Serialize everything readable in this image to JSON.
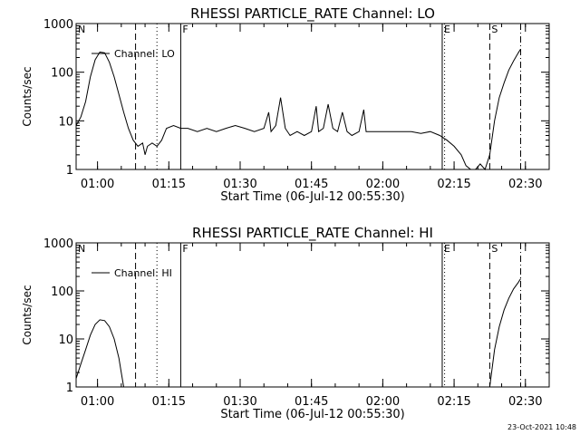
{
  "footer": {
    "timestamp": "23-Oct-2021 10:48"
  },
  "chart_data": [
    {
      "type": "line",
      "title": "RHESSI PARTICLE_RATE Channel: LO",
      "xlabel": "Start Time (06-Jul-12 00:55:30)",
      "ylabel": "Counts/sec",
      "yscale": "log",
      "ylim": [
        1,
        1000
      ],
      "xlim": [
        "00:55:30",
        "02:35:00"
      ],
      "xticks": [
        "01:00",
        "01:15",
        "01:30",
        "01:45",
        "02:00",
        "02:15",
        "02:30"
      ],
      "yticks": [
        "1",
        "10",
        "100",
        "1000"
      ],
      "legend": {
        "position": "top-left",
        "entries": [
          "Channel: LO"
        ]
      },
      "markers": [
        {
          "label": "N",
          "time": "00:55:30",
          "style": "solid"
        },
        {
          "label": "",
          "time": "01:08:00",
          "style": "dashed"
        },
        {
          "label": "",
          "time": "01:12:30",
          "style": "dotted"
        },
        {
          "label": "F",
          "time": "01:17:30",
          "style": "solid"
        },
        {
          "label": "E",
          "time": "02:12:30",
          "style": "solid"
        },
        {
          "label": "",
          "time": "02:13:00",
          "style": "dotted"
        },
        {
          "label": "S",
          "time": "02:22:30",
          "style": "dashed"
        },
        {
          "label": "",
          "time": "02:29:00",
          "style": "dashdot"
        }
      ],
      "series": [
        {
          "name": "Channel: LO",
          "points": [
            [
              "00:55:30",
              8
            ],
            [
              "00:56:30",
              12
            ],
            [
              "00:57:30",
              25
            ],
            [
              "00:58:30",
              80
            ],
            [
              "00:59:30",
              180
            ],
            [
              "01:00:30",
              260
            ],
            [
              "01:01:30",
              250
            ],
            [
              "01:02:30",
              160
            ],
            [
              "01:03:30",
              80
            ],
            [
              "01:04:30",
              35
            ],
            [
              "01:05:30",
              15
            ],
            [
              "01:06:30",
              7
            ],
            [
              "01:07:30",
              4
            ],
            [
              "01:08:30",
              3
            ],
            [
              "01:09:30",
              3.5
            ],
            [
              "01:10:00",
              2
            ],
            [
              "01:10:30",
              3
            ],
            [
              "01:11:30",
              3.5
            ],
            [
              "01:12:30",
              3
            ],
            [
              "01:13:30",
              4
            ],
            [
              "01:14:30",
              7
            ],
            [
              "01:16:00",
              8
            ],
            [
              "01:17:30",
              7
            ],
            [
              "01:19:00",
              7
            ],
            [
              "01:21:00",
              6
            ],
            [
              "01:23:00",
              7
            ],
            [
              "01:25:00",
              6
            ],
            [
              "01:27:00",
              7
            ],
            [
              "01:29:00",
              8
            ],
            [
              "01:31:00",
              7
            ],
            [
              "01:33:00",
              6
            ],
            [
              "01:35:00",
              7
            ],
            [
              "01:36:00",
              15
            ],
            [
              "01:36:30",
              6
            ],
            [
              "01:37:30",
              8
            ],
            [
              "01:38:30",
              30
            ],
            [
              "01:39:30",
              7
            ],
            [
              "01:40:30",
              5
            ],
            [
              "01:42:00",
              6
            ],
            [
              "01:43:30",
              5
            ],
            [
              "01:45:00",
              6
            ],
            [
              "01:46:00",
              20
            ],
            [
              "01:46:30",
              6
            ],
            [
              "01:47:30",
              7
            ],
            [
              "01:48:30",
              22
            ],
            [
              "01:49:30",
              7
            ],
            [
              "01:50:30",
              6
            ],
            [
              "01:51:30",
              15
            ],
            [
              "01:52:30",
              6
            ],
            [
              "01:53:30",
              5
            ],
            [
              "01:55:00",
              6
            ],
            [
              "01:56:00",
              17
            ],
            [
              "01:56:30",
              6
            ],
            [
              "01:58:00",
              6
            ],
            [
              "02:00:00",
              6
            ],
            [
              "02:02:00",
              6
            ],
            [
              "02:04:00",
              6
            ],
            [
              "02:06:00",
              6
            ],
            [
              "02:08:00",
              5.5
            ],
            [
              "02:10:00",
              6
            ],
            [
              "02:12:00",
              5
            ],
            [
              "02:13:30",
              4
            ],
            [
              "02:15:00",
              3
            ],
            [
              "02:16:30",
              2
            ],
            [
              "02:17:30",
              1.2
            ],
            [
              "02:18:30",
              1
            ],
            [
              "02:19:30",
              1
            ],
            [
              "02:20:30",
              1.3
            ],
            [
              "02:21:30",
              1
            ],
            [
              "02:22:30",
              2
            ],
            [
              "02:23:30",
              10
            ],
            [
              "02:24:30",
              30
            ],
            [
              "02:25:30",
              60
            ],
            [
              "02:26:30",
              110
            ],
            [
              "02:27:30",
              170
            ],
            [
              "02:28:30",
              250
            ],
            [
              "02:29:00",
              300
            ]
          ]
        }
      ]
    },
    {
      "type": "line",
      "title": "RHESSI PARTICLE_RATE Channel: HI",
      "xlabel": "Start Time (06-Jul-12 00:55:30)",
      "ylabel": "Counts/sec",
      "yscale": "log",
      "ylim": [
        1,
        1000
      ],
      "xlim": [
        "00:55:30",
        "02:35:00"
      ],
      "xticks": [
        "01:00",
        "01:15",
        "01:30",
        "01:45",
        "02:00",
        "02:15",
        "02:30"
      ],
      "yticks": [
        "1",
        "10",
        "100",
        "1000"
      ],
      "legend": {
        "position": "top-left",
        "entries": [
          "Channel: HI"
        ]
      },
      "markers": [
        {
          "label": "N",
          "time": "00:55:30",
          "style": "solid"
        },
        {
          "label": "",
          "time": "01:08:00",
          "style": "dashed"
        },
        {
          "label": "",
          "time": "01:12:30",
          "style": "dotted"
        },
        {
          "label": "F",
          "time": "01:17:30",
          "style": "solid"
        },
        {
          "label": "E",
          "time": "02:12:30",
          "style": "solid"
        },
        {
          "label": "",
          "time": "02:13:00",
          "style": "dotted"
        },
        {
          "label": "S",
          "time": "02:22:30",
          "style": "dashed"
        },
        {
          "label": "",
          "time": "02:29:00",
          "style": "dashdot"
        }
      ],
      "series": [
        {
          "name": "Channel: HI",
          "points": [
            [
              "00:55:30",
              1.5
            ],
            [
              "00:56:30",
              3
            ],
            [
              "00:57:30",
              6
            ],
            [
              "00:58:30",
              12
            ],
            [
              "00:59:30",
              20
            ],
            [
              "01:00:30",
              25
            ],
            [
              "01:01:30",
              24
            ],
            [
              "01:02:30",
              18
            ],
            [
              "01:03:30",
              10
            ],
            [
              "01:04:30",
              4
            ],
            [
              "01:05:00",
              2
            ],
            [
              "01:05:30",
              1
            ]
          ]
        },
        {
          "name": "Channel: HI",
          "points": [
            [
              "02:22:30",
              1
            ],
            [
              "02:23:30",
              6
            ],
            [
              "02:24:30",
              18
            ],
            [
              "02:25:30",
              40
            ],
            [
              "02:26:30",
              70
            ],
            [
              "02:27:30",
              110
            ],
            [
              "02:28:30",
              150
            ],
            [
              "02:29:00",
              180
            ]
          ]
        }
      ]
    }
  ]
}
